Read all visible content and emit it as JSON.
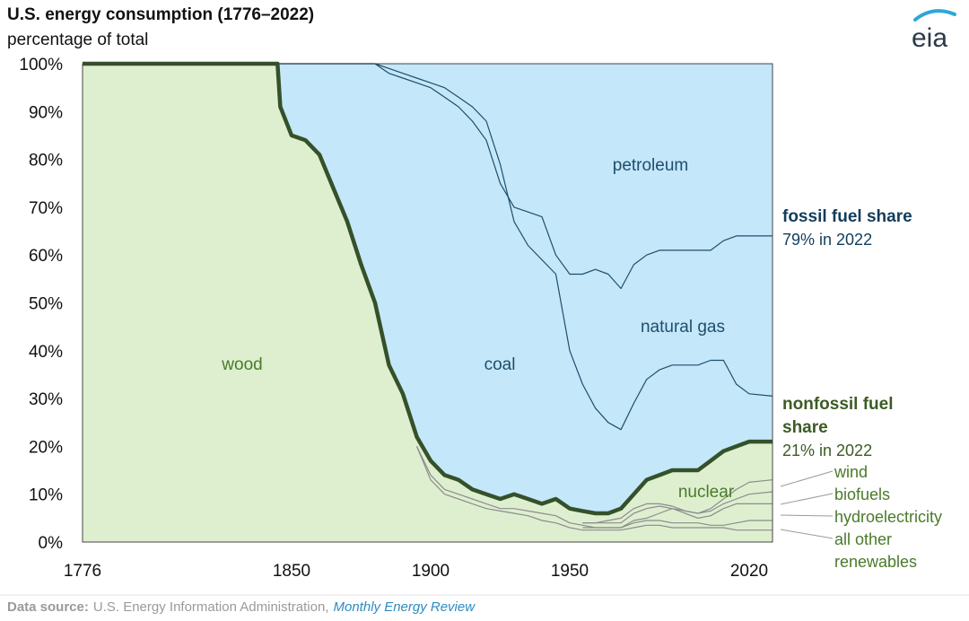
{
  "chart_data": {
    "type": "area",
    "title": "U.S. energy consumption (1776–2022)",
    "subtitle": "percentage of total",
    "xlim": [
      1776,
      2022
    ],
    "ylim": [
      0,
      100
    ],
    "x_ticks": [
      {
        "value": 1776,
        "label": "1776"
      },
      {
        "value": 1850,
        "label": "1850"
      },
      {
        "value": 1900,
        "label": "1900"
      },
      {
        "value": 1950,
        "label": "1950"
      },
      {
        "value": 2020,
        "label": "2020"
      }
    ],
    "y_ticks": [
      {
        "value": 0,
        "label": "0%"
      },
      {
        "value": 10,
        "label": "10%"
      },
      {
        "value": 20,
        "label": "20%"
      },
      {
        "value": 30,
        "label": "30%"
      },
      {
        "value": 40,
        "label": "40%"
      },
      {
        "value": 50,
        "label": "50%"
      },
      {
        "value": 60,
        "label": "60%"
      },
      {
        "value": 70,
        "label": "70%"
      },
      {
        "value": 80,
        "label": "80%"
      },
      {
        "value": 90,
        "label": "90%"
      },
      {
        "value": 100,
        "label": "100%"
      }
    ],
    "series": [
      {
        "name": "nonfossil fuel share (cumulative)",
        "points": [
          [
            1776,
            100
          ],
          [
            1845,
            100
          ],
          [
            1846,
            91
          ],
          [
            1850,
            85
          ],
          [
            1855,
            84
          ],
          [
            1860,
            81
          ],
          [
            1865,
            74
          ],
          [
            1870,
            67
          ],
          [
            1875,
            58
          ],
          [
            1880,
            50
          ],
          [
            1885,
            37
          ],
          [
            1890,
            31
          ],
          [
            1895,
            22
          ],
          [
            1900,
            17
          ],
          [
            1905,
            14
          ],
          [
            1910,
            13
          ],
          [
            1915,
            11
          ],
          [
            1920,
            10
          ],
          [
            1925,
            9
          ],
          [
            1930,
            10
          ],
          [
            1935,
            9
          ],
          [
            1940,
            8
          ],
          [
            1945,
            9
          ],
          [
            1950,
            7
          ],
          [
            1955,
            6.5
          ],
          [
            1960,
            6
          ],
          [
            1965,
            6
          ],
          [
            1970,
            7
          ],
          [
            1975,
            10
          ],
          [
            1980,
            13
          ],
          [
            1985,
            14
          ],
          [
            1990,
            15
          ],
          [
            1995,
            15
          ],
          [
            2000,
            15
          ],
          [
            2005,
            17
          ],
          [
            2010,
            19
          ],
          [
            2015,
            20
          ],
          [
            2020,
            21
          ],
          [
            2022,
            21
          ]
        ]
      },
      {
        "name": "coal / natural gas boundary (cumulative)",
        "points": [
          [
            1776,
            100
          ],
          [
            1880,
            100
          ],
          [
            1885,
            99
          ],
          [
            1890,
            98
          ],
          [
            1895,
            97
          ],
          [
            1900,
            96
          ],
          [
            1905,
            95
          ],
          [
            1910,
            93
          ],
          [
            1915,
            91
          ],
          [
            1920,
            88
          ],
          [
            1925,
            79
          ],
          [
            1930,
            67
          ],
          [
            1935,
            62
          ],
          [
            1940,
            59
          ],
          [
            1945,
            56
          ],
          [
            1950,
            40
          ],
          [
            1955,
            33
          ],
          [
            1960,
            28
          ],
          [
            1965,
            25
          ],
          [
            1970,
            23.5
          ],
          [
            1975,
            29
          ],
          [
            1980,
            34
          ],
          [
            1985,
            36
          ],
          [
            1990,
            37
          ],
          [
            1995,
            37
          ],
          [
            2000,
            37
          ],
          [
            2005,
            38
          ],
          [
            2010,
            38
          ],
          [
            2015,
            33
          ],
          [
            2020,
            31
          ],
          [
            2022,
            30.5
          ]
        ]
      },
      {
        "name": "natural gas / petroleum boundary (cumulative)",
        "points": [
          [
            1776,
            100
          ],
          [
            1880,
            100
          ],
          [
            1885,
            98
          ],
          [
            1890,
            97
          ],
          [
            1895,
            96
          ],
          [
            1900,
            95
          ],
          [
            1905,
            93
          ],
          [
            1910,
            91
          ],
          [
            1915,
            88
          ],
          [
            1920,
            84
          ],
          [
            1925,
            75
          ],
          [
            1930,
            70
          ],
          [
            1935,
            69
          ],
          [
            1940,
            68
          ],
          [
            1945,
            60
          ],
          [
            1950,
            56
          ],
          [
            1955,
            56
          ],
          [
            1960,
            57
          ],
          [
            1965,
            56
          ],
          [
            1970,
            53
          ],
          [
            1975,
            58
          ],
          [
            1980,
            60
          ],
          [
            1985,
            61
          ],
          [
            1990,
            61
          ],
          [
            1995,
            61
          ],
          [
            2000,
            61
          ],
          [
            2005,
            61
          ],
          [
            2010,
            63
          ],
          [
            2015,
            64
          ],
          [
            2020,
            64
          ],
          [
            2022,
            64
          ]
        ]
      },
      {
        "name": "wood / other renewables (cumulative)",
        "points": [
          [
            1895,
            20
          ],
          [
            1900,
            14
          ],
          [
            1905,
            11
          ],
          [
            1910,
            10
          ],
          [
            1915,
            9
          ],
          [
            1920,
            8
          ],
          [
            1925,
            7
          ],
          [
            1930,
            7
          ],
          [
            1935,
            6.5
          ],
          [
            1940,
            6
          ],
          [
            1945,
            5.5
          ],
          [
            1950,
            4
          ],
          [
            1955,
            3.5
          ],
          [
            1960,
            3
          ],
          [
            1965,
            3
          ],
          [
            1970,
            3
          ],
          [
            1975,
            4.5
          ],
          [
            1980,
            5
          ],
          [
            1985,
            6
          ],
          [
            1990,
            7
          ],
          [
            1995,
            6
          ],
          [
            2000,
            5
          ],
          [
            2005,
            5.5
          ],
          [
            2010,
            7
          ],
          [
            2015,
            8
          ],
          [
            2020,
            8
          ],
          [
            2022,
            8
          ]
        ]
      },
      {
        "name": "all other renewables",
        "points": [
          [
            1895,
            20
          ],
          [
            1900,
            13
          ],
          [
            1905,
            10
          ],
          [
            1910,
            9
          ],
          [
            1915,
            8
          ],
          [
            1920,
            7
          ],
          [
            1925,
            6.5
          ],
          [
            1930,
            6
          ],
          [
            1935,
            5.5
          ],
          [
            1940,
            4.5
          ],
          [
            1945,
            4
          ],
          [
            1950,
            3
          ],
          [
            1955,
            2.5
          ],
          [
            1960,
            2.5
          ],
          [
            1965,
            2.5
          ],
          [
            1970,
            2.5
          ],
          [
            1975,
            3
          ],
          [
            1980,
            3.5
          ],
          [
            1985,
            3.5
          ],
          [
            1990,
            3
          ],
          [
            1995,
            3
          ],
          [
            2000,
            3
          ],
          [
            2005,
            3
          ],
          [
            2010,
            3
          ],
          [
            2015,
            2.5
          ],
          [
            2020,
            2.5
          ],
          [
            2022,
            2.5
          ]
        ]
      },
      {
        "name": "hydroelectricity",
        "points": [
          [
            1955,
            3
          ],
          [
            1960,
            3
          ],
          [
            1965,
            3
          ],
          [
            1970,
            3
          ],
          [
            1975,
            4
          ],
          [
            1980,
            4.5
          ],
          [
            1985,
            4.5
          ],
          [
            1990,
            4
          ],
          [
            1995,
            4
          ],
          [
            2000,
            4
          ],
          [
            2005,
            3.5
          ],
          [
            2010,
            3.5
          ],
          [
            2015,
            4
          ],
          [
            2020,
            4.5
          ],
          [
            2022,
            4.5
          ]
        ]
      },
      {
        "name": "biofuels",
        "points": [
          [
            1955,
            4
          ],
          [
            1960,
            4
          ],
          [
            1965,
            4
          ],
          [
            1970,
            4
          ],
          [
            1975,
            6
          ],
          [
            1980,
            7
          ],
          [
            1985,
            7.5
          ],
          [
            1990,
            7
          ],
          [
            1995,
            6.5
          ],
          [
            2000,
            6
          ],
          [
            2005,
            6.5
          ],
          [
            2010,
            8
          ],
          [
            2015,
            9
          ],
          [
            2020,
            10
          ],
          [
            2022,
            10.5
          ]
        ]
      },
      {
        "name": "wind",
        "points": [
          [
            1955,
            4
          ],
          [
            1960,
            4
          ],
          [
            1965,
            4.5
          ],
          [
            1970,
            5
          ],
          [
            1975,
            7
          ],
          [
            1980,
            8
          ],
          [
            1985,
            8
          ],
          [
            1990,
            7.5
          ],
          [
            1995,
            6.5
          ],
          [
            2000,
            6
          ],
          [
            2005,
            7
          ],
          [
            2010,
            9
          ],
          [
            2015,
            11
          ],
          [
            2020,
            12.5
          ],
          [
            2022,
            13
          ]
        ]
      }
    ],
    "area_labels": [
      {
        "key": "wood",
        "text": "wood"
      },
      {
        "key": "coal",
        "text": "coal"
      },
      {
        "key": "petroleum",
        "text": "petroleum"
      },
      {
        "key": "natural_gas",
        "text": "natural gas"
      },
      {
        "key": "nuclear",
        "text": "nuclear"
      }
    ],
    "fossil_share": {
      "heading": "fossil fuel share",
      "value": "79% in 2022"
    },
    "nonfossil_share": {
      "heading_line1": "nonfossil fuel",
      "heading_line2": "share",
      "value": "21% in 2022"
    },
    "renewable_labels": [
      "wind",
      "biofuels",
      "hydroelectricity",
      "all other",
      "renewables"
    ]
  },
  "colors": {
    "fossil_fill": "#c4e7fa",
    "nonfossil_fill": "#deefd0",
    "nonfossil_line": "#34512a",
    "fossil_line": "#1f4e6b",
    "renewable_line": "#8c8c8c"
  },
  "source": {
    "prefix": "Data source:",
    "text": "U.S. Energy Information Administration,",
    "link": "Monthly Energy Review"
  },
  "logo": {
    "text": "eia"
  }
}
